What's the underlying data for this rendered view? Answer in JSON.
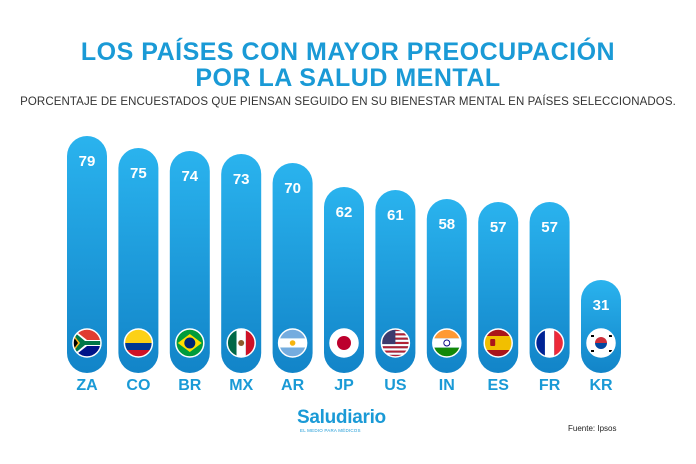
{
  "header": {
    "title_line1": "LOS PAÍSES CON MAYOR PREOCUPACIÓN",
    "title_line2": "POR LA SALUD MENTAL",
    "subtitle": "PORCENTAJE DE ENCUESTADOS QUE PIENSAN SEGUIDO EN SU BIENESTAR MENTAL EN PAÍSES SELECCIONADOS."
  },
  "footer": {
    "logo": "Saludiario",
    "tagline": "EL MEDIO PARA MÉDICOS",
    "source": "Fuente: Ipsos"
  },
  "colors": {
    "bar_top": "#2ab3ee",
    "bar_bottom": "#1284c8",
    "title": "#1a9ad6",
    "label": "#1a9ad6"
  },
  "chart_data": {
    "type": "bar",
    "categories": [
      "ZA",
      "CO",
      "BR",
      "MX",
      "AR",
      "JP",
      "US",
      "IN",
      "ES",
      "FR",
      "KR"
    ],
    "values": [
      79,
      75,
      74,
      73,
      70,
      62,
      61,
      58,
      57,
      57,
      31
    ],
    "flags": [
      "south-africa-flag",
      "colombia-flag",
      "brazil-flag",
      "mexico-flag",
      "argentina-flag",
      "japan-flag",
      "usa-flag",
      "india-flag",
      "spain-flag",
      "france-flag",
      "south-korea-flag"
    ],
    "ylim": [
      0,
      79
    ]
  }
}
